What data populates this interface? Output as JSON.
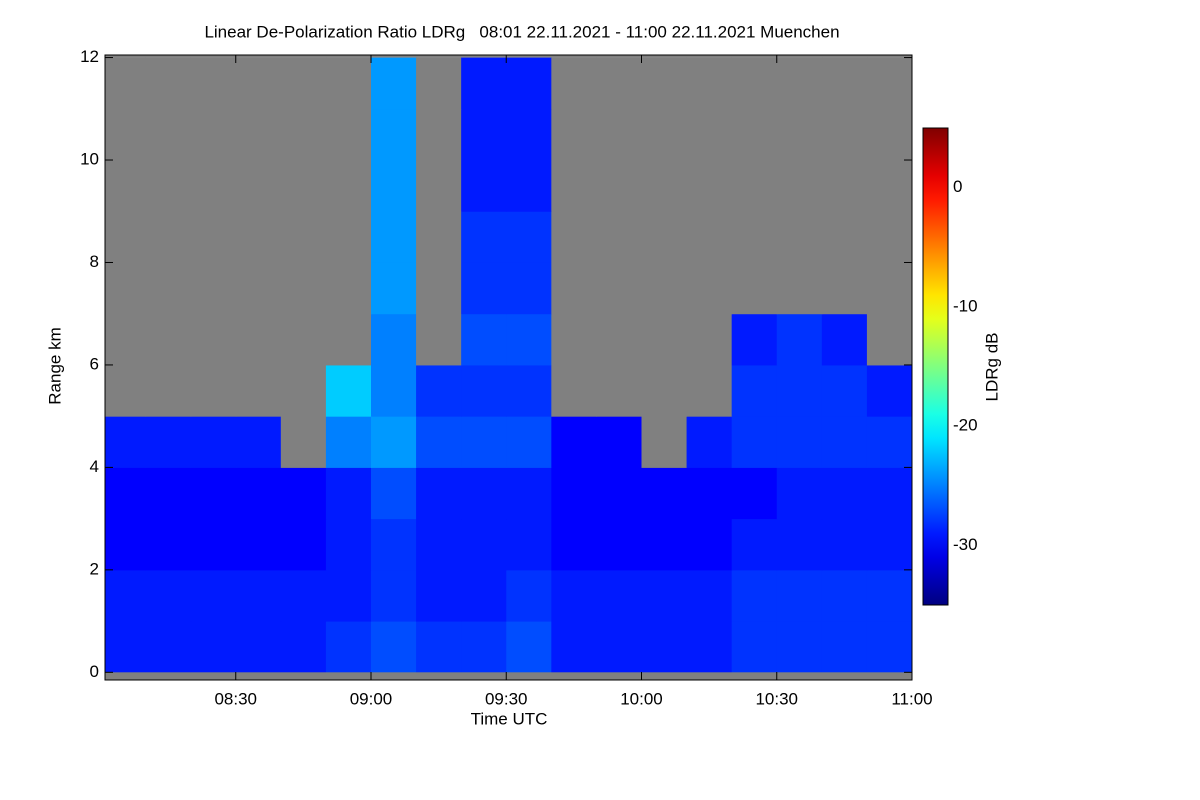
{
  "chart_data": {
    "type": "heatmap",
    "title": "Linear De-Polarization Ratio LDRg   08:01 22.11.2021 - 11:00 22.11.2021 Muenchen",
    "x_label": "Time UTC",
    "y_label": "Range km",
    "colorbar_label": "LDRg dB",
    "xlim": [
      1,
      180
    ],
    "ylim": [
      -0.15,
      12.05
    ],
    "xticks": [
      {
        "value": 30,
        "label": "08:30"
      },
      {
        "value": 60,
        "label": "09:00"
      },
      {
        "value": 90,
        "label": "09:30"
      },
      {
        "value": 120,
        "label": "10:00"
      },
      {
        "value": 150,
        "label": "10:30"
      },
      {
        "value": 180,
        "label": "11:00"
      }
    ],
    "yticks": [
      0,
      2,
      4,
      6,
      8,
      10,
      12
    ],
    "clim": [
      -35,
      5
    ],
    "cticks": [
      0,
      -10,
      -20,
      -30
    ],
    "colormap": "jet",
    "missing_color": "#808080",
    "x_edges": [
      1,
      10,
      20,
      30,
      40,
      50,
      60,
      70,
      80,
      90,
      100,
      110,
      120,
      130,
      140,
      150,
      160,
      170,
      180
    ],
    "y_edges": [
      0,
      1,
      2,
      3,
      4,
      5,
      6,
      7,
      8,
      9,
      10,
      11,
      12
    ],
    "values": [
      [
        -29,
        -29,
        -29,
        -29,
        -29,
        -28,
        -27,
        -28,
        -28,
        -27,
        -29,
        -29,
        -29,
        -29,
        -28,
        -28,
        -28,
        -28
      ],
      [
        -29,
        -29,
        -29,
        -29,
        -29,
        -29,
        -28,
        -29,
        -29,
        -28,
        -29,
        -29,
        -29,
        -29,
        -28,
        -28,
        -28,
        -28
      ],
      [
        -30,
        -30,
        -30,
        -30,
        -30,
        -29,
        -28,
        -29,
        -29,
        -29,
        -30,
        -30,
        -30,
        -30,
        -29,
        -29,
        -29,
        -29
      ],
      [
        -30,
        -30,
        -30,
        -30,
        -30,
        -29,
        -27,
        -29,
        -29,
        -29,
        -30,
        -30,
        -30,
        -30,
        -30,
        -29,
        -29,
        -29
      ],
      [
        -29,
        -29,
        -29,
        -29,
        null,
        -25,
        -24,
        -27,
        -27,
        -27,
        -30,
        -30,
        null,
        -29,
        -28,
        -28,
        -28,
        -28
      ],
      [
        null,
        null,
        null,
        null,
        null,
        -22,
        -25,
        -28,
        -28,
        -28,
        null,
        null,
        null,
        null,
        -28,
        -28,
        -28,
        -29
      ],
      [
        null,
        null,
        null,
        null,
        null,
        null,
        -25,
        null,
        -27,
        -27,
        null,
        null,
        null,
        null,
        -29,
        -28,
        -29,
        null
      ],
      [
        null,
        null,
        null,
        null,
        null,
        null,
        -24,
        null,
        -28,
        -28,
        null,
        null,
        null,
        null,
        null,
        null,
        null,
        null
      ],
      [
        null,
        null,
        null,
        null,
        null,
        null,
        -24,
        null,
        -28,
        -28,
        null,
        null,
        null,
        null,
        null,
        null,
        null,
        null
      ],
      [
        null,
        null,
        null,
        null,
        null,
        null,
        -24,
        null,
        -29,
        -29,
        null,
        null,
        null,
        null,
        null,
        null,
        null,
        null
      ],
      [
        null,
        null,
        null,
        null,
        null,
        null,
        -24,
        null,
        -29,
        -29,
        null,
        null,
        null,
        null,
        null,
        null,
        null,
        null
      ],
      [
        null,
        null,
        null,
        null,
        null,
        null,
        -24,
        null,
        -29,
        -29,
        null,
        null,
        null,
        null,
        null,
        null,
        null,
        null
      ]
    ]
  }
}
